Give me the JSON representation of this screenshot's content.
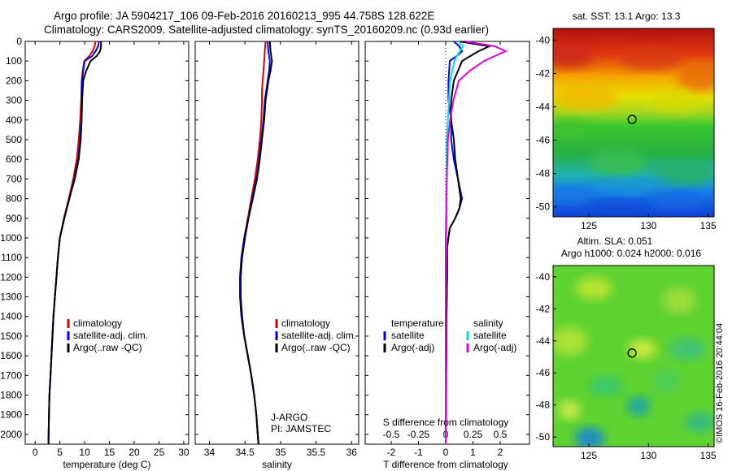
{
  "header": {
    "line1": "Argo profile: JA 5904217_106 09-Feb-2016 20160213_995 44.758S 128.622E",
    "line2": "Climatology: CARS2009. Satellite-adjusted climatology: synTS_20160209.nc (0.93d earlier)"
  },
  "credit": "©IMOS 16-Feb-2016 20:44:04",
  "colors": {
    "climatology": "#e00000",
    "satellite": "#0000ee",
    "argo": "#000000",
    "sal_satellite": "#00e0e0",
    "sal_argo": "#e000e0"
  },
  "chart_data": [
    {
      "type": "line",
      "xlabel": "temperature (deg C)",
      "ylabel": "",
      "xlim": [
        -2,
        31
      ],
      "ylim": [
        2050,
        0
      ],
      "xticks": [
        "0",
        "5",
        "10",
        "15",
        "20",
        "25",
        "30"
      ],
      "yticks": [
        "0",
        "100",
        "200",
        "300",
        "400",
        "500",
        "600",
        "700",
        "800",
        "900",
        "1000",
        "1100",
        "1200",
        "1300",
        "1400",
        "1500",
        "1600",
        "1700",
        "1800",
        "1900",
        "2000"
      ],
      "legend": {
        "placement": "lower-right",
        "entries": [
          "climatology",
          "satellite-adj. clim.",
          "Argo(..raw -QC)"
        ]
      },
      "series": [
        {
          "name": "climatology",
          "color": "#e00000",
          "x": [
            12.2,
            12.0,
            11.6,
            10.9,
            9.9,
            9.6,
            9.4,
            9.3,
            9.1,
            8.8,
            8.4,
            7.7,
            6.8,
            5.8,
            5.0,
            4.6,
            4.3,
            4.0,
            3.7,
            3.5,
            3.3,
            3.1,
            2.9,
            2.8,
            2.7
          ],
          "y": [
            0,
            25,
            50,
            75,
            100,
            150,
            200,
            300,
            400,
            500,
            600,
            700,
            800,
            900,
            1000,
            1100,
            1200,
            1300,
            1400,
            1500,
            1600,
            1700,
            1800,
            1900,
            2050
          ]
        },
        {
          "name": "satellite-adj. clim.",
          "color": "#0000ee",
          "x": [
            12.9,
            12.7,
            12.2,
            11.5,
            10.0,
            9.7,
            9.5,
            9.4,
            9.3,
            9.1,
            8.7,
            7.9,
            6.9,
            5.9,
            5.0,
            4.6,
            4.3,
            4.0,
            3.7,
            3.5,
            3.3,
            3.1,
            2.9,
            2.8,
            2.7
          ],
          "y": [
            0,
            25,
            50,
            75,
            100,
            150,
            200,
            300,
            400,
            500,
            600,
            700,
            800,
            900,
            1000,
            1100,
            1200,
            1300,
            1400,
            1500,
            1600,
            1700,
            1800,
            1900,
            2050
          ]
        },
        {
          "name": "Argo(..raw -QC)",
          "color": "#000000",
          "x": [
            13.3,
            13.3,
            13.1,
            12.4,
            11.2,
            10.3,
            9.7,
            9.5,
            9.4,
            9.2,
            8.8,
            8.0,
            6.9,
            5.9,
            5.0,
            4.6,
            4.3,
            4.0,
            3.7,
            3.5,
            3.3,
            3.1,
            2.9,
            2.8,
            2.7
          ],
          "y": [
            0,
            25,
            50,
            75,
            100,
            150,
            200,
            300,
            400,
            500,
            600,
            700,
            800,
            900,
            1000,
            1100,
            1200,
            1300,
            1400,
            1500,
            1600,
            1700,
            1800,
            1900,
            2050
          ]
        }
      ]
    },
    {
      "type": "line",
      "xlabel": "salinity",
      "xlim": [
        33.8,
        36.1
      ],
      "ylim": [
        2050,
        0
      ],
      "xticks": [
        "34",
        "34.5",
        "35",
        "35.5",
        "36"
      ],
      "legend": {
        "placement": "lower-right",
        "entries": [
          "climatology",
          "satellite-adj. clim.",
          "Argo(..raw -QC)"
        ]
      },
      "annotation": [
        "J-ARGO",
        "PI: JAMSTEC"
      ],
      "series": [
        {
          "name": "climatology",
          "color": "#e00000",
          "x": [
            34.79,
            34.78,
            34.77,
            34.76,
            34.75,
            34.74,
            34.74,
            34.73,
            34.71,
            34.68,
            34.64,
            34.59,
            34.54,
            34.49,
            34.45,
            34.43,
            34.43,
            34.45,
            34.49,
            34.54,
            34.59,
            34.63,
            34.66,
            34.68,
            34.69
          ],
          "y": [
            0,
            50,
            100,
            150,
            200,
            250,
            300,
            400,
            500,
            600,
            700,
            800,
            900,
            1000,
            1100,
            1200,
            1300,
            1400,
            1500,
            1600,
            1700,
            1800,
            1900,
            2000,
            2050
          ]
        },
        {
          "name": "satellite-adj. clim.",
          "color": "#0000ee",
          "x": [
            34.82,
            34.83,
            34.85,
            34.84,
            34.82,
            34.8,
            34.78,
            34.76,
            34.73,
            34.7,
            34.66,
            34.6,
            34.55,
            34.49,
            34.45,
            34.43,
            34.43,
            34.45,
            34.49,
            34.54,
            34.59,
            34.63,
            34.66,
            34.68,
            34.69
          ],
          "y": [
            0,
            50,
            100,
            150,
            200,
            250,
            300,
            400,
            500,
            600,
            700,
            800,
            900,
            1000,
            1100,
            1200,
            1300,
            1400,
            1500,
            1600,
            1700,
            1800,
            1900,
            2000,
            2050
          ]
        },
        {
          "name": "Argo(..raw -QC)",
          "color": "#000000",
          "x": [
            34.85,
            34.86,
            34.88,
            34.86,
            34.83,
            34.81,
            34.79,
            34.77,
            34.74,
            34.71,
            34.67,
            34.61,
            34.55,
            34.5,
            34.46,
            34.44,
            34.44,
            34.46,
            34.49,
            34.54,
            34.59,
            34.63,
            34.66,
            34.68,
            34.69
          ],
          "y": [
            0,
            50,
            100,
            150,
            200,
            250,
            300,
            400,
            500,
            600,
            700,
            800,
            900,
            1000,
            1100,
            1200,
            1300,
            1400,
            1500,
            1600,
            1700,
            1800,
            1900,
            2000,
            2050
          ]
        }
      ]
    },
    {
      "type": "line",
      "xlabel": "T difference from climatology",
      "xlabel2": "S difference from climatology",
      "xlim": [
        -2.8,
        2.9
      ],
      "ylim": [
        2050,
        0
      ],
      "xticks": [
        "-2",
        "-1",
        "0",
        "1",
        "2"
      ],
      "xticks2": [
        "-0.5",
        "-0.25",
        "0",
        "0.25",
        "0.5"
      ],
      "legend": {
        "placement": "bottom",
        "temperature": {
          "title": "temperature",
          "entries": [
            "satellite",
            "Argo(-adj)"
          ]
        },
        "salinity": {
          "title": "salinity",
          "entries": [
            "satellite",
            "Argo(-adj)"
          ]
        }
      },
      "series": [
        {
          "name": "temperature satellite",
          "color": "#0000ee",
          "x": [
            0.3,
            0.5,
            0.6,
            0.4,
            0.15,
            0.1,
            0.1,
            0.2,
            0.2,
            0.3,
            0.45,
            0.6,
            0.5,
            0.35,
            0.15,
            0.05,
            0.05,
            0.03,
            0.02,
            0.01,
            0.01,
            0,
            0
          ],
          "y": [
            0,
            25,
            50,
            75,
            100,
            200,
            300,
            400,
            500,
            600,
            700,
            800,
            850,
            900,
            950,
            1050,
            1200,
            1400,
            1600,
            1800,
            1900,
            2000,
            2050
          ]
        },
        {
          "name": "temperature Argo(-adj)",
          "color": "#000000",
          "x": [
            0.5,
            1.6,
            1.2,
            0.9,
            0.6,
            0.3,
            0.2,
            0.2,
            0.3,
            0.35,
            0.45,
            0.55,
            0.5,
            0.35,
            0.15,
            0.05,
            0.05,
            0.03,
            0.02,
            0.01,
            0.01,
            0,
            0
          ],
          "y": [
            0,
            25,
            50,
            75,
            100,
            200,
            300,
            400,
            500,
            600,
            700,
            800,
            850,
            900,
            950,
            1050,
            1200,
            1400,
            1600,
            1800,
            1900,
            2000,
            2050
          ]
        },
        {
          "name": "salinity satellite",
          "color": "#00e0e0",
          "x": [
            0.12,
            0.16,
            0.13,
            0.1,
            0.08,
            0.06,
            0.04,
            0.03,
            0.02,
            0.01,
            0.01,
            0.01,
            0,
            0,
            0
          ],
          "y": [
            0,
            25,
            50,
            75,
            100,
            150,
            200,
            300,
            400,
            500,
            700,
            900,
            1200,
            1600,
            2050
          ]
        },
        {
          "name": "salinity Argo(-adj)",
          "color": "#e000e0",
          "x": [
            0.18,
            0.45,
            0.55,
            0.45,
            0.35,
            0.22,
            0.12,
            0.07,
            0.04,
            0.02,
            0.01,
            0,
            0
          ],
          "y": [
            0,
            25,
            50,
            75,
            100,
            150,
            200,
            300,
            400,
            500,
            700,
            1000,
            2050
          ]
        }
      ]
    },
    {
      "type": "heatmap",
      "title": "sat. SST: 13.1  Argo: 13.3",
      "xlim": [
        122,
        135.5
      ],
      "ylim": [
        -50.6,
        -39.3
      ],
      "xticks": [
        "125",
        "130",
        "135"
      ],
      "yticks": [
        "-40",
        "-42",
        "-44",
        "-46",
        "-48",
        "-50"
      ],
      "marker": {
        "lon": 128.622,
        "lat": -44.758
      }
    },
    {
      "type": "heatmap",
      "title": "Altim. SLA: 0.051",
      "subtitle": "Argo h1000: 0.024 h2000: 0.016",
      "xlim": [
        122,
        135.5
      ],
      "ylim": [
        -50.6,
        -39.3
      ],
      "xticks": [
        "125",
        "130",
        "135"
      ],
      "yticks": [
        "-40",
        "-42",
        "-44",
        "-46",
        "-48",
        "-50"
      ],
      "marker": {
        "lon": 128.622,
        "lat": -44.758
      }
    }
  ]
}
